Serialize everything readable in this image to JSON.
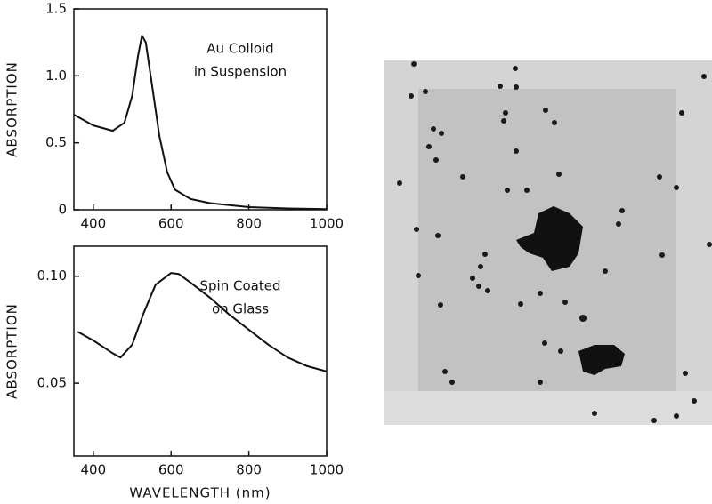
{
  "chart_data": [
    {
      "type": "line",
      "y_label": "ABSORPTION",
      "annotation": [
        "Au Colloid",
        "in Suspension"
      ],
      "x": [
        350,
        400,
        450,
        480,
        500,
        515,
        525,
        535,
        550,
        570,
        590,
        610,
        650,
        700,
        800,
        900,
        1000
      ],
      "values": [
        0.71,
        0.63,
        0.59,
        0.65,
        0.85,
        1.15,
        1.3,
        1.25,
        0.95,
        0.55,
        0.28,
        0.15,
        0.08,
        0.05,
        0.02,
        0.01,
        0.005
      ],
      "color": "#111111",
      "xlim": [
        350,
        1000
      ],
      "xticks": [
        400,
        600,
        800,
        1000
      ],
      "ylim": [
        0,
        1.5
      ],
      "yticks": [
        0,
        0.5,
        {
          "value": 1,
          "label": "1.0"
        },
        1.5
      ]
    },
    {
      "type": "line",
      "y_label": "ABSORPTION",
      "x_label": "WAVELENGTH (nm)",
      "annotation": [
        "Spin Coated",
        "on Glass"
      ],
      "x": [
        360,
        400,
        450,
        470,
        500,
        530,
        560,
        600,
        620,
        650,
        700,
        750,
        800,
        850,
        900,
        950,
        1000
      ],
      "values": [
        0.074,
        0.07,
        0.064,
        0.062,
        0.068,
        0.083,
        0.096,
        0.1015,
        0.101,
        0.097,
        0.09,
        0.082,
        0.075,
        0.068,
        0.062,
        0.058,
        0.0555
      ],
      "color": "#111111",
      "xlim": [
        350,
        1000
      ],
      "xticks": [
        400,
        600,
        800,
        1000
      ],
      "ylim": [
        0.016,
        0.114
      ],
      "yticks": [
        0.05,
        {
          "value": 0.1,
          "label": "0.10"
        }
      ]
    }
  ]
}
